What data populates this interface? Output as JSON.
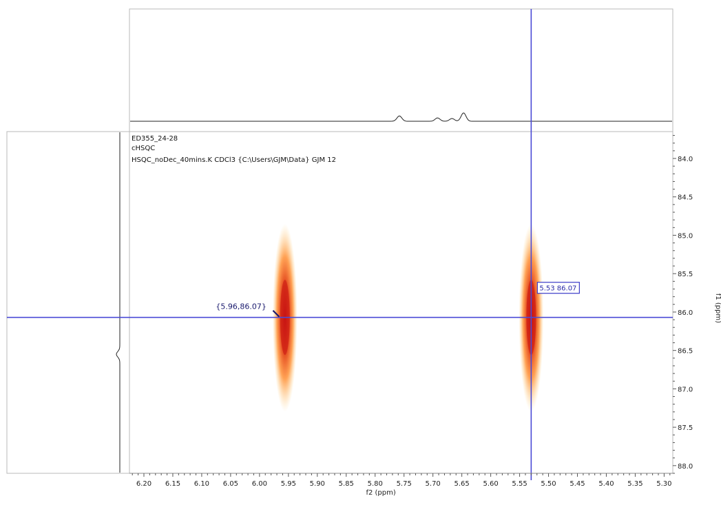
{
  "header": {
    "lines": [
      "ED355_24-28",
      "cHSQC",
      "HSQC_noDec_40mins.K CDCl3 {C:\\Users\\GJM\\Data} GJM 12"
    ]
  },
  "cursor": {
    "label": "5.53 86.07",
    "f2": 5.53,
    "f1": 86.07
  },
  "annotation": {
    "label": "{5.96,86.07}",
    "f2": 5.96,
    "f1": 86.07
  },
  "chart_data": {
    "type": "heatmap",
    "xlabel": "f2 (ppm)",
    "ylabel": "f1 (ppm)",
    "xlim": [
      6.225,
      5.285
    ],
    "ylim": [
      83.65,
      88.1
    ],
    "x_ticks": [
      "6.20",
      "6.15",
      "6.10",
      "6.05",
      "6.00",
      "5.95",
      "5.90",
      "5.85",
      "5.80",
      "5.75",
      "5.70",
      "5.65",
      "5.60",
      "5.55",
      "5.50",
      "5.45",
      "5.40",
      "5.35",
      "5.30"
    ],
    "x_tick_values": [
      6.2,
      6.15,
      6.1,
      6.05,
      6.0,
      5.95,
      5.9,
      5.85,
      5.8,
      5.75,
      5.7,
      5.65,
      5.6,
      5.55,
      5.5,
      5.45,
      5.4,
      5.35,
      5.3
    ],
    "y_ticks": [
      "84.0",
      "84.5",
      "85.0",
      "85.5",
      "86.0",
      "86.5",
      "87.0",
      "87.5",
      "88.0"
    ],
    "y_tick_values": [
      84.0,
      84.5,
      85.0,
      85.5,
      86.0,
      86.5,
      87.0,
      87.5,
      88.0
    ],
    "cross_peaks": [
      {
        "f2": 5.956,
        "f1": 86.07,
        "f1_span": [
          84.85,
          87.3
        ]
      },
      {
        "f2": 5.53,
        "f1": 86.07,
        "f1_span": [
          84.85,
          87.3
        ]
      }
    ],
    "f2_projection_peaks": [
      {
        "ppm": 5.758,
        "intensity": 0.35
      },
      {
        "ppm": 5.692,
        "intensity": 0.22
      },
      {
        "ppm": 5.667,
        "intensity": 0.18
      },
      {
        "ppm": 5.647,
        "intensity": 0.55
      }
    ],
    "f1_projection_peaks": [
      {
        "ppm": 86.55,
        "intensity": 0.25
      }
    ],
    "grid": false,
    "colors": {
      "cursor": "#4a4ad6",
      "annotation": "#1a1a6e",
      "peak_core": "#c81414",
      "peak_edge": "#ffb24d",
      "frame": "#b8b8b8",
      "trace": "#222222"
    }
  }
}
